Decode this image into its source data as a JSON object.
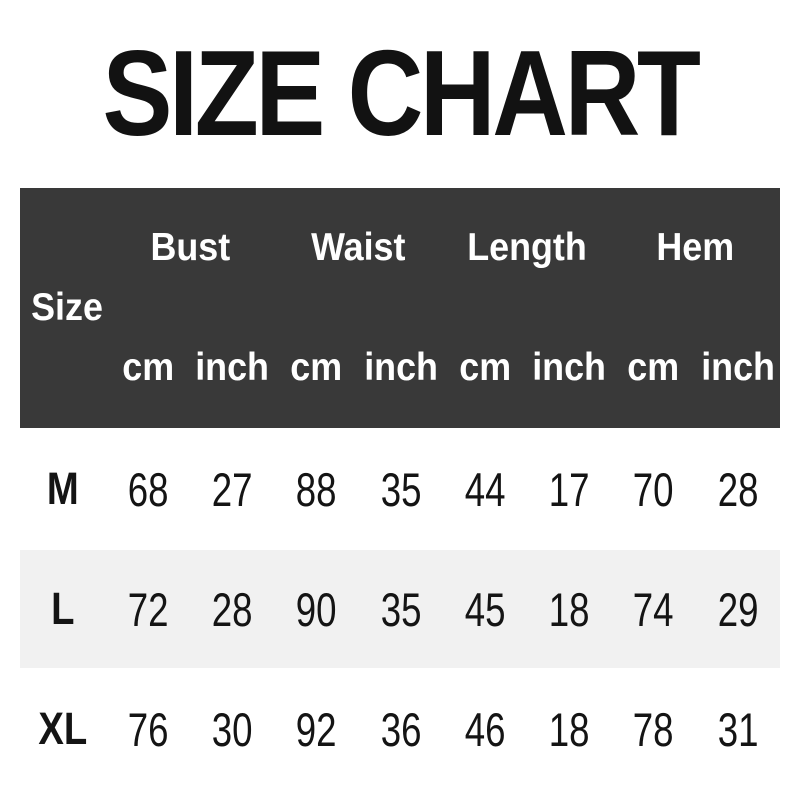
{
  "title": "SIZE CHART",
  "table": {
    "size_column_header": "Size",
    "groups": [
      {
        "label": "Bust"
      },
      {
        "label": "Waist"
      },
      {
        "label": "Length"
      },
      {
        "label": "Hem"
      }
    ],
    "unit_headers": [
      "cm",
      "inch",
      "cm",
      "inch",
      "cm",
      "inch",
      "cm",
      "inch"
    ],
    "rows": [
      {
        "size": "M",
        "values": [
          "68",
          "27",
          "88",
          "35",
          "44",
          "17",
          "70",
          "28"
        ]
      },
      {
        "size": "L",
        "values": [
          "72",
          "28",
          "90",
          "35",
          "45",
          "18",
          "74",
          "29"
        ]
      },
      {
        "size": "XL",
        "values": [
          "76",
          "30",
          "92",
          "36",
          "46",
          "18",
          "78",
          "31"
        ]
      }
    ]
  },
  "colors": {
    "header_bg": "#393939",
    "header_text": "#ffffff",
    "alt_row_bg": "#f1f1f1",
    "text": "#141414",
    "page_bg": "#ffffff"
  },
  "chart_data": {
    "type": "table",
    "title": "SIZE CHART",
    "columns": [
      "Size",
      "Bust cm",
      "Bust inch",
      "Waist cm",
      "Waist inch",
      "Length cm",
      "Length inch",
      "Hem cm",
      "Hem inch"
    ],
    "rows": [
      [
        "M",
        68,
        27,
        88,
        35,
        44,
        17,
        70,
        28
      ],
      [
        "L",
        72,
        28,
        90,
        35,
        45,
        18,
        74,
        29
      ],
      [
        "XL",
        76,
        30,
        92,
        36,
        46,
        18,
        78,
        31
      ]
    ],
    "units": [
      "cm",
      "inch"
    ],
    "measurements": [
      "Bust",
      "Waist",
      "Length",
      "Hem"
    ],
    "sizes": [
      "M",
      "L",
      "XL"
    ]
  }
}
